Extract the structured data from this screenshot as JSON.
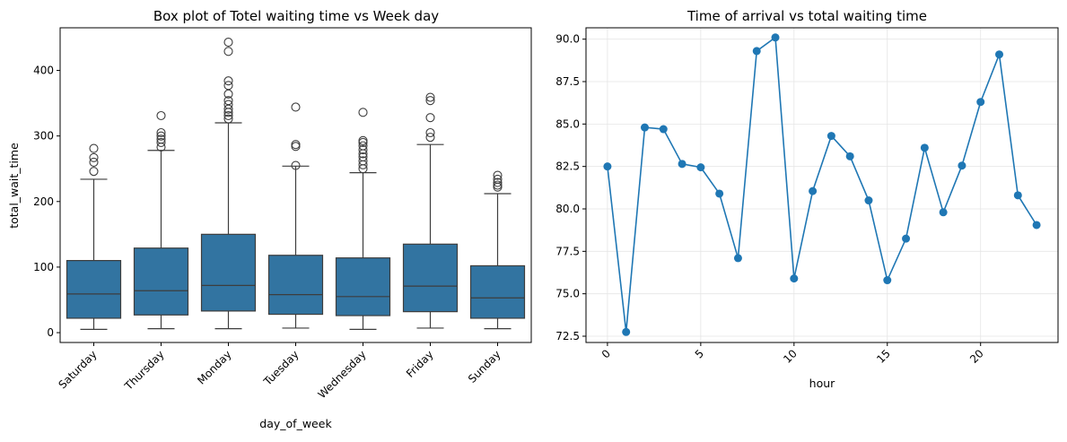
{
  "chart_data": [
    {
      "type": "box",
      "title": "Box plot of Totel waiting time vs Week day",
      "xlabel": "day_of_week",
      "ylabel": "total_wait_time",
      "ylim": [
        -15,
        465
      ],
      "yticks": [
        0,
        100,
        200,
        300,
        400
      ],
      "color": "#3274a1",
      "categories": [
        "Saturday",
        "Thursday",
        "Monday",
        "Tuesday",
        "Wednesday",
        "Friday",
        "Sunday"
      ],
      "boxes": [
        {
          "whisker_low": 5,
          "q1": 22,
          "median": 59,
          "q3": 110,
          "whisker_high": 234,
          "outliers": [
            246,
            260,
            267,
            281
          ]
        },
        {
          "whisker_low": 6,
          "q1": 27,
          "median": 64,
          "q3": 129,
          "whisker_high": 278,
          "outliers": [
            283,
            290,
            295,
            300,
            305,
            331
          ]
        },
        {
          "whisker_low": 6,
          "q1": 33,
          "median": 72,
          "q3": 150,
          "whisker_high": 320,
          "outliers": [
            326,
            331,
            336,
            341,
            348,
            354,
            364,
            377,
            384,
            429,
            443
          ]
        },
        {
          "whisker_low": 7,
          "q1": 28,
          "median": 58,
          "q3": 118,
          "whisker_high": 254,
          "outliers": [
            255,
            284,
            287,
            344
          ]
        },
        {
          "whisker_low": 5,
          "q1": 26,
          "median": 55,
          "q3": 114,
          "whisker_high": 244,
          "outliers": [
            250,
            256,
            262,
            268,
            273,
            279,
            285,
            290,
            293,
            336
          ]
        },
        {
          "whisker_low": 7,
          "q1": 32,
          "median": 71,
          "q3": 135,
          "whisker_high": 287,
          "outliers": [
            298,
            305,
            328,
            354,
            359
          ]
        },
        {
          "whisker_low": 6,
          "q1": 22,
          "median": 53,
          "q3": 102,
          "whisker_high": 212,
          "outliers": [
            222,
            225,
            229,
            234,
            240
          ]
        }
      ]
    },
    {
      "type": "line",
      "title": "Time of arrival vs total waiting time",
      "xlabel": "hour",
      "ylabel": "",
      "xlim": [
        -1.15,
        24.15
      ],
      "ylim": [
        72.13,
        90.67
      ],
      "xticks": [
        0,
        5,
        10,
        15,
        20
      ],
      "yticks": [
        72.5,
        75.0,
        77.5,
        80.0,
        82.5,
        85.0,
        87.5,
        90.0
      ],
      "grid": true,
      "color": "#1f77b4",
      "x": [
        0,
        1,
        2,
        3,
        4,
        5,
        6,
        7,
        8,
        9,
        10,
        11,
        12,
        13,
        14,
        15,
        16,
        17,
        18,
        19,
        20,
        21,
        22,
        23
      ],
      "y": [
        82.5,
        72.75,
        84.8,
        84.7,
        82.65,
        82.45,
        80.9,
        77.1,
        89.3,
        90.1,
        75.9,
        81.05,
        84.3,
        83.1,
        80.5,
        75.8,
        78.25,
        83.6,
        79.8,
        82.55,
        86.3,
        89.1,
        80.8,
        79.05
      ]
    }
  ]
}
